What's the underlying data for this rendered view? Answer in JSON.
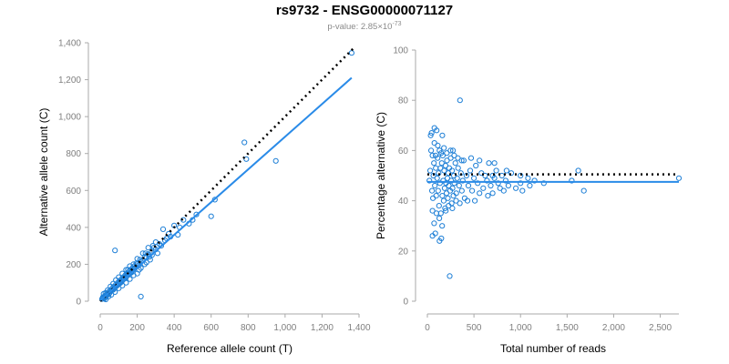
{
  "header": {
    "title": "rs9732 - ENSG00000071127",
    "pvalue_prefix": "p-value: 2.85×10",
    "pvalue_exponent": "-73"
  },
  "colors": {
    "points": "#1e7fd6",
    "fit_line": "#2a8be8",
    "reference_line": "#000000",
    "axis": "#aaaaaa",
    "tick_text": "#7f7f7f"
  },
  "chart_data": [
    {
      "type": "scatter",
      "xlabel": "Reference allele count (T)",
      "ylabel": "Alternative allele count (C)",
      "xlim": [
        0,
        1400
      ],
      "ylim": [
        0,
        1400
      ],
      "xticks": [
        0,
        200,
        400,
        600,
        800,
        1000,
        1200,
        1400
      ],
      "xtick_labels": [
        "0",
        "200",
        "400",
        "600",
        "800",
        "1,000",
        "1,200",
        "1,400"
      ],
      "yticks": [
        0,
        200,
        400,
        600,
        800,
        1000,
        1200,
        1400
      ],
      "ytick_labels": [
        "0",
        "200",
        "400",
        "600",
        "800",
        "1,000",
        "1,200",
        "1,400"
      ],
      "grid": false,
      "fit_line": [
        [
          0,
          5
        ],
        [
          1360,
          1210
        ]
      ],
      "reference_line": [
        [
          0,
          0
        ],
        [
          1370,
          1370
        ]
      ],
      "points": [
        [
          10,
          12
        ],
        [
          15,
          18
        ],
        [
          20,
          16
        ],
        [
          25,
          28
        ],
        [
          30,
          24
        ],
        [
          35,
          40
        ],
        [
          40,
          38
        ],
        [
          45,
          50
        ],
        [
          50,
          44
        ],
        [
          55,
          60
        ],
        [
          60,
          55
        ],
        [
          65,
          70
        ],
        [
          70,
          62
        ],
        [
          75,
          80
        ],
        [
          80,
          74
        ],
        [
          85,
          90
        ],
        [
          90,
          84
        ],
        [
          95,
          100
        ],
        [
          100,
          92
        ],
        [
          105,
          110
        ],
        [
          110,
          102
        ],
        [
          115,
          120
        ],
        [
          120,
          112
        ],
        [
          125,
          130
        ],
        [
          130,
          122
        ],
        [
          135,
          140
        ],
        [
          140,
          132
        ],
        [
          145,
          150
        ],
        [
          150,
          142
        ],
        [
          155,
          160
        ],
        [
          160,
          150
        ],
        [
          165,
          170
        ],
        [
          170,
          160
        ],
        [
          175,
          180
        ],
        [
          180,
          172
        ],
        [
          185,
          190
        ],
        [
          190,
          182
        ],
        [
          200,
          200
        ],
        [
          210,
          196
        ],
        [
          220,
          215
        ],
        [
          230,
          220
        ],
        [
          240,
          240
        ],
        [
          250,
          236
        ],
        [
          260,
          255
        ],
        [
          275,
          262
        ],
        [
          290,
          290
        ],
        [
          300,
          280
        ],
        [
          320,
          310
        ],
        [
          340,
          390
        ],
        [
          350,
          330
        ],
        [
          370,
          365
        ],
        [
          380,
          350
        ],
        [
          400,
          410
        ],
        [
          420,
          360
        ],
        [
          450,
          440
        ],
        [
          500,
          440
        ],
        [
          600,
          460
        ],
        [
          620,
          550
        ],
        [
          780,
          860
        ],
        [
          790,
          770
        ],
        [
          950,
          760
        ],
        [
          1360,
          1345
        ],
        [
          18,
          40
        ],
        [
          28,
          45
        ],
        [
          40,
          60
        ],
        [
          55,
          80
        ],
        [
          70,
          95
        ],
        [
          85,
          115
        ],
        [
          100,
          130
        ],
        [
          120,
          150
        ],
        [
          140,
          170
        ],
        [
          160,
          190
        ],
        [
          180,
          200
        ],
        [
          200,
          230
        ],
        [
          230,
          260
        ],
        [
          260,
          290
        ],
        [
          300,
          320
        ],
        [
          30,
          10
        ],
        [
          45,
          25
        ],
        [
          60,
          35
        ],
        [
          80,
          50
        ],
        [
          100,
          70
        ],
        [
          120,
          85
        ],
        [
          140,
          100
        ],
        [
          160,
          120
        ],
        [
          180,
          140
        ],
        [
          210,
          170
        ],
        [
          240,
          200
        ],
        [
          270,
          225
        ],
        [
          310,
          260
        ],
        [
          80,
          275
        ],
        [
          150,
          170
        ],
        [
          200,
          150
        ],
        [
          220,
          180
        ],
        [
          250,
          210
        ],
        [
          280,
          250
        ],
        [
          330,
          300
        ],
        [
          360,
          340
        ],
        [
          430,
          400
        ],
        [
          480,
          420
        ],
        [
          520,
          470
        ],
        [
          220,
          25
        ],
        [
          15,
          22
        ],
        [
          22,
          14
        ],
        [
          35,
          30
        ],
        [
          48,
          42
        ],
        [
          62,
          58
        ],
        [
          78,
          70
        ],
        [
          92,
          88
        ],
        [
          108,
          98
        ],
        [
          125,
          118
        ],
        [
          138,
          125
        ],
        [
          152,
          148
        ],
        [
          168,
          155
        ],
        [
          185,
          178
        ],
        [
          195,
          205
        ],
        [
          215,
          225
        ],
        [
          245,
          260
        ],
        [
          265,
          240
        ],
        [
          285,
          300
        ]
      ]
    },
    {
      "type": "scatter",
      "xlabel": "Total number of reads",
      "ylabel": "Percentage alternative (C)",
      "xlim": [
        0,
        2700
      ],
      "ylim": [
        0,
        100
      ],
      "xticks": [
        0,
        500,
        1000,
        1500,
        2000,
        2500
      ],
      "xtick_labels": [
        "0",
        "500",
        "1,000",
        "1,500",
        "2,000",
        "2,500"
      ],
      "yticks": [
        0,
        20,
        40,
        60,
        80,
        100
      ],
      "ytick_labels": [
        "0",
        "20",
        "40",
        "60",
        "80",
        "100"
      ],
      "grid": false,
      "fit_line": [
        [
          0,
          47.5
        ],
        [
          2700,
          47.5
        ]
      ],
      "reference_line": [
        [
          0,
          50.5
        ],
        [
          2700,
          50.5
        ]
      ],
      "points": [
        [
          22,
          48
        ],
        [
          30,
          52
        ],
        [
          35,
          66
        ],
        [
          45,
          67
        ],
        [
          50,
          44
        ],
        [
          55,
          58
        ],
        [
          60,
          41
        ],
        [
          65,
          50
        ],
        [
          70,
          55
        ],
        [
          72,
          31
        ],
        [
          80,
          46
        ],
        [
          85,
          27
        ],
        [
          90,
          53
        ],
        [
          95,
          42
        ],
        [
          100,
          68
        ],
        [
          105,
          49
        ],
        [
          110,
          57
        ],
        [
          115,
          44
        ],
        [
          120,
          51
        ],
        [
          125,
          38
        ],
        [
          130,
          60
        ],
        [
          135,
          47
        ],
        [
          140,
          53
        ],
        [
          145,
          35
        ],
        [
          150,
          25
        ],
        [
          155,
          55
        ],
        [
          160,
          42
        ],
        [
          165,
          58
        ],
        [
          170,
          48
        ],
        [
          175,
          40
        ],
        [
          180,
          52
        ],
        [
          185,
          45
        ],
        [
          190,
          37
        ],
        [
          195,
          54
        ],
        [
          200,
          47
        ],
        [
          205,
          43
        ],
        [
          210,
          56
        ],
        [
          215,
          49
        ],
        [
          220,
          41
        ],
        [
          225,
          51
        ],
        [
          230,
          46
        ],
        [
          235,
          53
        ],
        [
          240,
          10
        ],
        [
          245,
          44
        ],
        [
          250,
          57
        ],
        [
          255,
          48
        ],
        [
          260,
          39
        ],
        [
          265,
          52
        ],
        [
          270,
          45
        ],
        [
          275,
          60
        ],
        [
          280,
          42
        ],
        [
          285,
          50
        ],
        [
          290,
          47
        ],
        [
          300,
          55
        ],
        [
          310,
          43
        ],
        [
          320,
          49
        ],
        [
          330,
          53
        ],
        [
          340,
          46
        ],
        [
          350,
          80
        ],
        [
          360,
          51
        ],
        [
          370,
          44
        ],
        [
          380,
          48
        ],
        [
          390,
          56
        ],
        [
          400,
          41
        ],
        [
          420,
          50
        ],
        [
          440,
          46
        ],
        [
          460,
          52
        ],
        [
          480,
          44
        ],
        [
          500,
          49
        ],
        [
          520,
          54
        ],
        [
          540,
          47
        ],
        [
          560,
          43
        ],
        [
          580,
          51
        ],
        [
          600,
          45
        ],
        [
          620,
          50
        ],
        [
          640,
          48
        ],
        [
          660,
          55
        ],
        [
          680,
          46
        ],
        [
          700,
          43
        ],
        [
          720,
          49
        ],
        [
          740,
          52
        ],
        [
          760,
          47
        ],
        [
          780,
          45
        ],
        [
          800,
          50
        ],
        [
          820,
          44
        ],
        [
          840,
          48
        ],
        [
          870,
          46
        ],
        [
          900,
          51
        ],
        [
          950,
          45
        ],
        [
          1000,
          47
        ],
        [
          1020,
          44
        ],
        [
          1080,
          49
        ],
        [
          1100,
          46
        ],
        [
          1550,
          48
        ],
        [
          1620,
          52
        ],
        [
          1680,
          44
        ],
        [
          2700,
          49
        ],
        [
          40,
          60
        ],
        [
          55,
          36
        ],
        [
          75,
          63
        ],
        [
          88,
          58
        ],
        [
          98,
          35
        ],
        [
          112,
          62
        ],
        [
          128,
          33
        ],
        [
          148,
          59
        ],
        [
          158,
          30
        ],
        [
          178,
          61
        ],
        [
          198,
          36
        ],
        [
          208,
          59
        ],
        [
          228,
          38
        ],
        [
          248,
          60
        ],
        [
          268,
          37
        ],
        [
          288,
          58
        ],
        [
          308,
          40
        ],
        [
          328,
          57
        ],
        [
          348,
          39
        ],
        [
          368,
          56
        ],
        [
          430,
          40
        ],
        [
          470,
          57
        ],
        [
          510,
          40
        ],
        [
          560,
          56
        ],
        [
          650,
          42
        ],
        [
          720,
          55
        ],
        [
          55,
          26
        ],
        [
          75,
          69
        ],
        [
          130,
          24
        ],
        [
          160,
          66
        ],
        [
          1000,
          50
        ],
        [
          1150,
          48
        ],
        [
          1250,
          47
        ],
        [
          700,
          50
        ],
        [
          850,
          52
        ]
      ]
    }
  ]
}
